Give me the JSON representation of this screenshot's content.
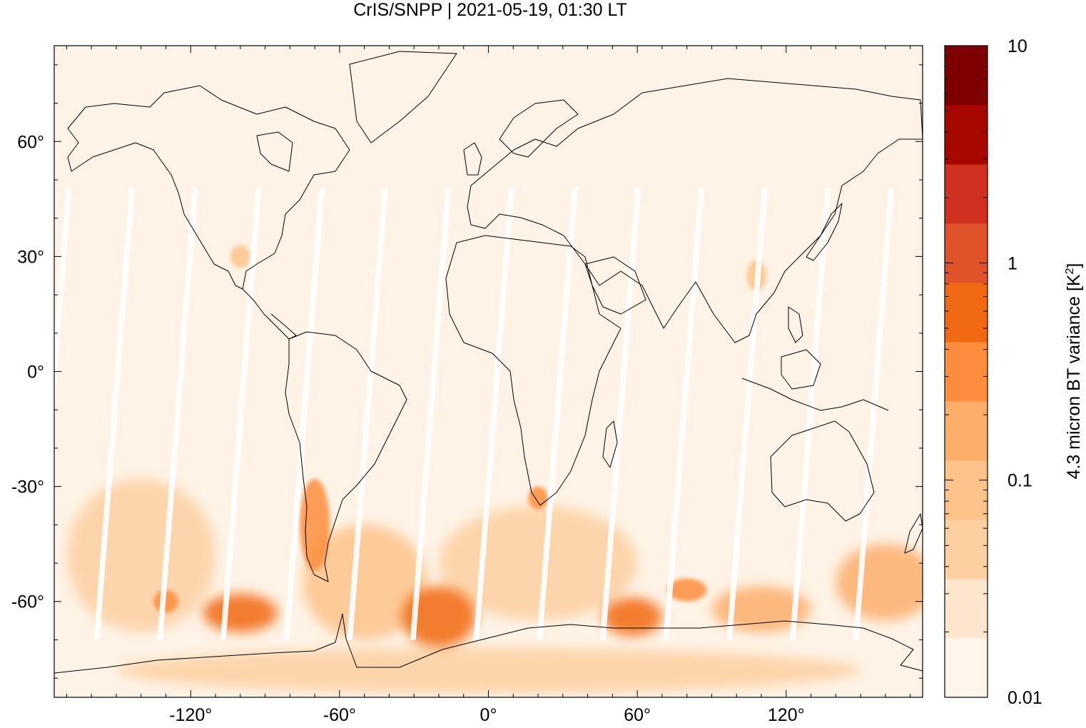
{
  "chart_data": {
    "type": "heatmap",
    "title": "CrIS/SNPP | 2021-05-19, 01:30 LT",
    "xlabel": "",
    "ylabel": "",
    "xlim": [
      -175,
      175
    ],
    "ylim": [
      -85,
      85
    ],
    "x_ticks": [
      {
        "value": -120,
        "label": "-120°"
      },
      {
        "value": -60,
        "label": "-60°"
      },
      {
        "value": 0,
        "label": "0°"
      },
      {
        "value": 60,
        "label": "60°"
      },
      {
        "value": 120,
        "label": "120°"
      }
    ],
    "y_ticks": [
      {
        "value": 60,
        "label": "60°"
      },
      {
        "value": 30,
        "label": "30°"
      },
      {
        "value": 0,
        "label": "0°"
      },
      {
        "value": -30,
        "label": "-30°"
      },
      {
        "value": -60,
        "label": "-60°"
      }
    ],
    "grid": false,
    "colorbar": {
      "label_prefix": "4.3 micron BT variance [K",
      "label_exp": "2",
      "label_suffix": "]",
      "scale": "log",
      "range": [
        0.01,
        10
      ],
      "ticks": [
        {
          "value": 0.01,
          "label": "0.01"
        },
        {
          "value": 0.1,
          "label": "0.1"
        },
        {
          "value": 1,
          "label": "1"
        },
        {
          "value": 10,
          "label": "10"
        }
      ],
      "colors": [
        "#fff5eb",
        "#fee6ce",
        "#fdd0a2",
        "#fdc38a",
        "#fdae6b",
        "#fd8d3c",
        "#f16913",
        "#e0532a",
        "#d03020",
        "#a60800",
        "#7f0000"
      ]
    },
    "regions": [
      {
        "lon": -140,
        "lat": -48,
        "variance": 0.05,
        "rx": 30,
        "ry": 20
      },
      {
        "lon": -130,
        "lat": -60,
        "variance": 0.3,
        "rx": 5,
        "ry": 3
      },
      {
        "lon": -100,
        "lat": -63,
        "variance": 0.6,
        "rx": 15,
        "ry": 5
      },
      {
        "lon": -70,
        "lat": -40,
        "variance": 0.25,
        "rx": 6,
        "ry": 12
      },
      {
        "lon": -50,
        "lat": -55,
        "variance": 0.1,
        "rx": 25,
        "ry": 15
      },
      {
        "lon": -20,
        "lat": -64,
        "variance": 0.8,
        "rx": 15,
        "ry": 8
      },
      {
        "lon": 20,
        "lat": -33,
        "variance": 0.3,
        "rx": 4,
        "ry": 3
      },
      {
        "lon": 20,
        "lat": -50,
        "variance": 0.06,
        "rx": 40,
        "ry": 15
      },
      {
        "lon": 58,
        "lat": -64,
        "variance": 0.8,
        "rx": 12,
        "ry": 5
      },
      {
        "lon": 80,
        "lat": -57,
        "variance": 0.4,
        "rx": 8,
        "ry": 3
      },
      {
        "lon": 110,
        "lat": -62,
        "variance": 0.2,
        "rx": 20,
        "ry": 6
      },
      {
        "lon": 160,
        "lat": -55,
        "variance": 0.15,
        "rx": 20,
        "ry": 10
      },
      {
        "lon": -100,
        "lat": 30,
        "variance": 0.08,
        "rx": 4,
        "ry": 3
      },
      {
        "lon": 108,
        "lat": 25,
        "variance": 0.08,
        "rx": 4,
        "ry": 4
      },
      {
        "lon": 0,
        "lat": -78,
        "variance": 0.04,
        "rx": 150,
        "ry": 6
      }
    ]
  }
}
